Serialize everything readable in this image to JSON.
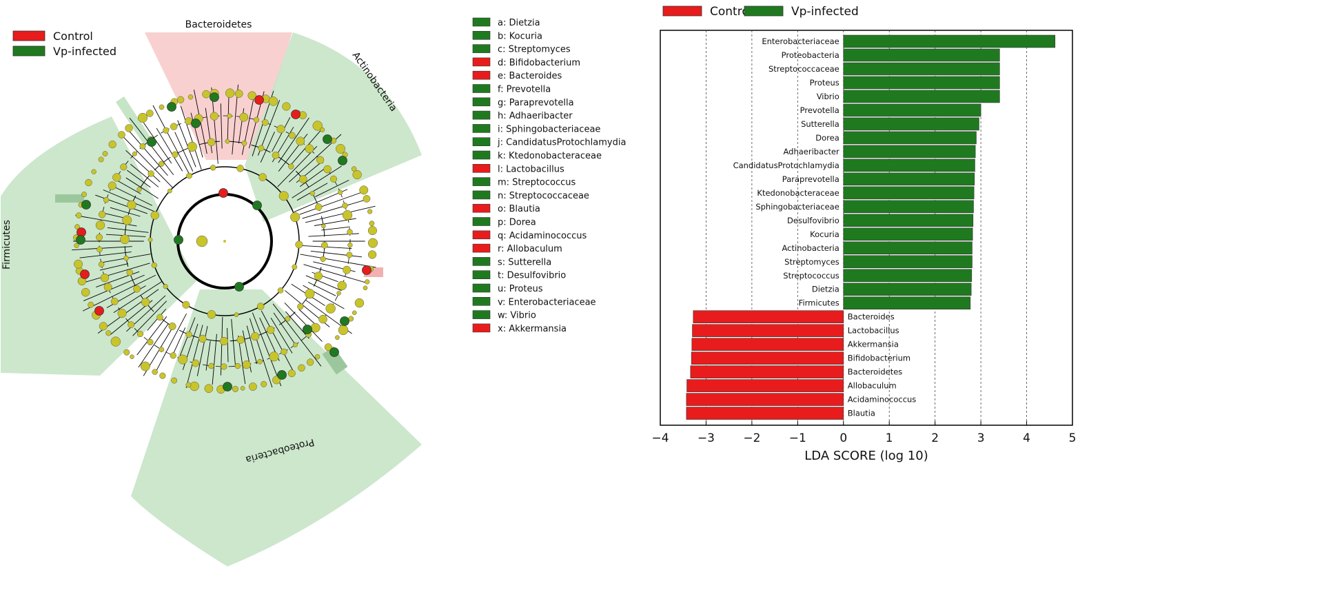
{
  "colors": {
    "control": "#e81c1c",
    "infected": "#1f7a1f",
    "node": "#c8c42a",
    "clade_red": "#f8c8c8",
    "clade_green": "#c6e4c6"
  },
  "cladogram": {
    "legend": [
      {
        "label": "Control",
        "color": "#e81c1c"
      },
      {
        "label": "Vp-infected",
        "color": "#1f7a1f"
      }
    ],
    "clades": [
      {
        "label": "Bacteroidetes",
        "group": "control"
      },
      {
        "label": "Actinobacteria",
        "group": "infected"
      },
      {
        "label": "Firmicutes",
        "group": "infected"
      },
      {
        "label": "Proteobacteria",
        "group": "infected"
      }
    ]
  },
  "key_legend": [
    {
      "text": "a: Dietzia",
      "group": "infected"
    },
    {
      "text": "b: Kocuria",
      "group": "infected"
    },
    {
      "text": "c: Streptomyces",
      "group": "infected"
    },
    {
      "text": "d: Bifidobacterium",
      "group": "control"
    },
    {
      "text": "e: Bacteroides",
      "group": "control"
    },
    {
      "text": "f: Prevotella",
      "group": "infected"
    },
    {
      "text": "g: Paraprevotella",
      "group": "infected"
    },
    {
      "text": "h: Adhaeribacter",
      "group": "infected"
    },
    {
      "text": "i: Sphingobacteriaceae",
      "group": "infected"
    },
    {
      "text": "j: CandidatusProtochlamydia",
      "group": "infected"
    },
    {
      "text": "k: Ktedonobacteraceae",
      "group": "infected"
    },
    {
      "text": "l: Lactobacillus",
      "group": "control"
    },
    {
      "text": "m: Streptococcus",
      "group": "infected"
    },
    {
      "text": "n: Streptococcaceae",
      "group": "infected"
    },
    {
      "text": "o: Blautia",
      "group": "control"
    },
    {
      "text": "p: Dorea",
      "group": "infected"
    },
    {
      "text": "q: Acidaminococcus",
      "group": "control"
    },
    {
      "text": "r: Allobaculum",
      "group": "control"
    },
    {
      "text": "s: Sutterella",
      "group": "infected"
    },
    {
      "text": "t: Desulfovibrio",
      "group": "infected"
    },
    {
      "text": "u: Proteus",
      "group": "infected"
    },
    {
      "text": "v: Enterobacteriaceae",
      "group": "infected"
    },
    {
      "text": "w: Vibrio",
      "group": "infected"
    },
    {
      "text": "x: Akkermansia",
      "group": "control"
    }
  ],
  "chart_data": {
    "type": "bar",
    "orientation": "horizontal",
    "title": "",
    "xlabel": "LDA SCORE (log 10)",
    "ylabel": "",
    "xlim": [
      -4,
      5
    ],
    "xticks": [
      "−4",
      "−3",
      "−2",
      "−1",
      "0",
      "1",
      "2",
      "3",
      "4",
      "5"
    ],
    "grid": true,
    "legend": [
      {
        "label": "Control",
        "color": "#e81c1c"
      },
      {
        "label": "Vp-infected",
        "color": "#1f7a1f"
      }
    ],
    "categories": [
      "Enterobacteriaceae",
      "Proteobacteria",
      "Streptococcaceae",
      "Proteus",
      "Vibrio",
      "Prevotella",
      "Sutterella",
      "Dorea",
      "Adhaeribacter",
      "CandidatusProtochlamydia",
      "Paraprevotella",
      "Ktedonobacteraceae",
      "Sphingobacteriaceae",
      "Desulfovibrio",
      "Kocuria",
      "Actinobacteria",
      "Streptomyces",
      "Streptococcus",
      "Dietzia",
      "Firmicutes",
      "Bacteroides",
      "Lactobacillus",
      "Akkermansia",
      "Bifidobacterium",
      "Bacteroidetes",
      "Allobaculum",
      "Acidaminococcus",
      "Blautia"
    ],
    "values": [
      4.62,
      3.41,
      3.41,
      3.41,
      3.41,
      3.0,
      2.96,
      2.9,
      2.88,
      2.87,
      2.86,
      2.85,
      2.84,
      2.83,
      2.82,
      2.81,
      2.81,
      2.8,
      2.79,
      2.77,
      -3.28,
      -3.3,
      -3.31,
      -3.32,
      -3.34,
      -3.42,
      -3.43,
      -3.43
    ],
    "groups": [
      "Vp-infected",
      "Vp-infected",
      "Vp-infected",
      "Vp-infected",
      "Vp-infected",
      "Vp-infected",
      "Vp-infected",
      "Vp-infected",
      "Vp-infected",
      "Vp-infected",
      "Vp-infected",
      "Vp-infected",
      "Vp-infected",
      "Vp-infected",
      "Vp-infected",
      "Vp-infected",
      "Vp-infected",
      "Vp-infected",
      "Vp-infected",
      "Vp-infected",
      "Control",
      "Control",
      "Control",
      "Control",
      "Control",
      "Control",
      "Control",
      "Control"
    ]
  }
}
